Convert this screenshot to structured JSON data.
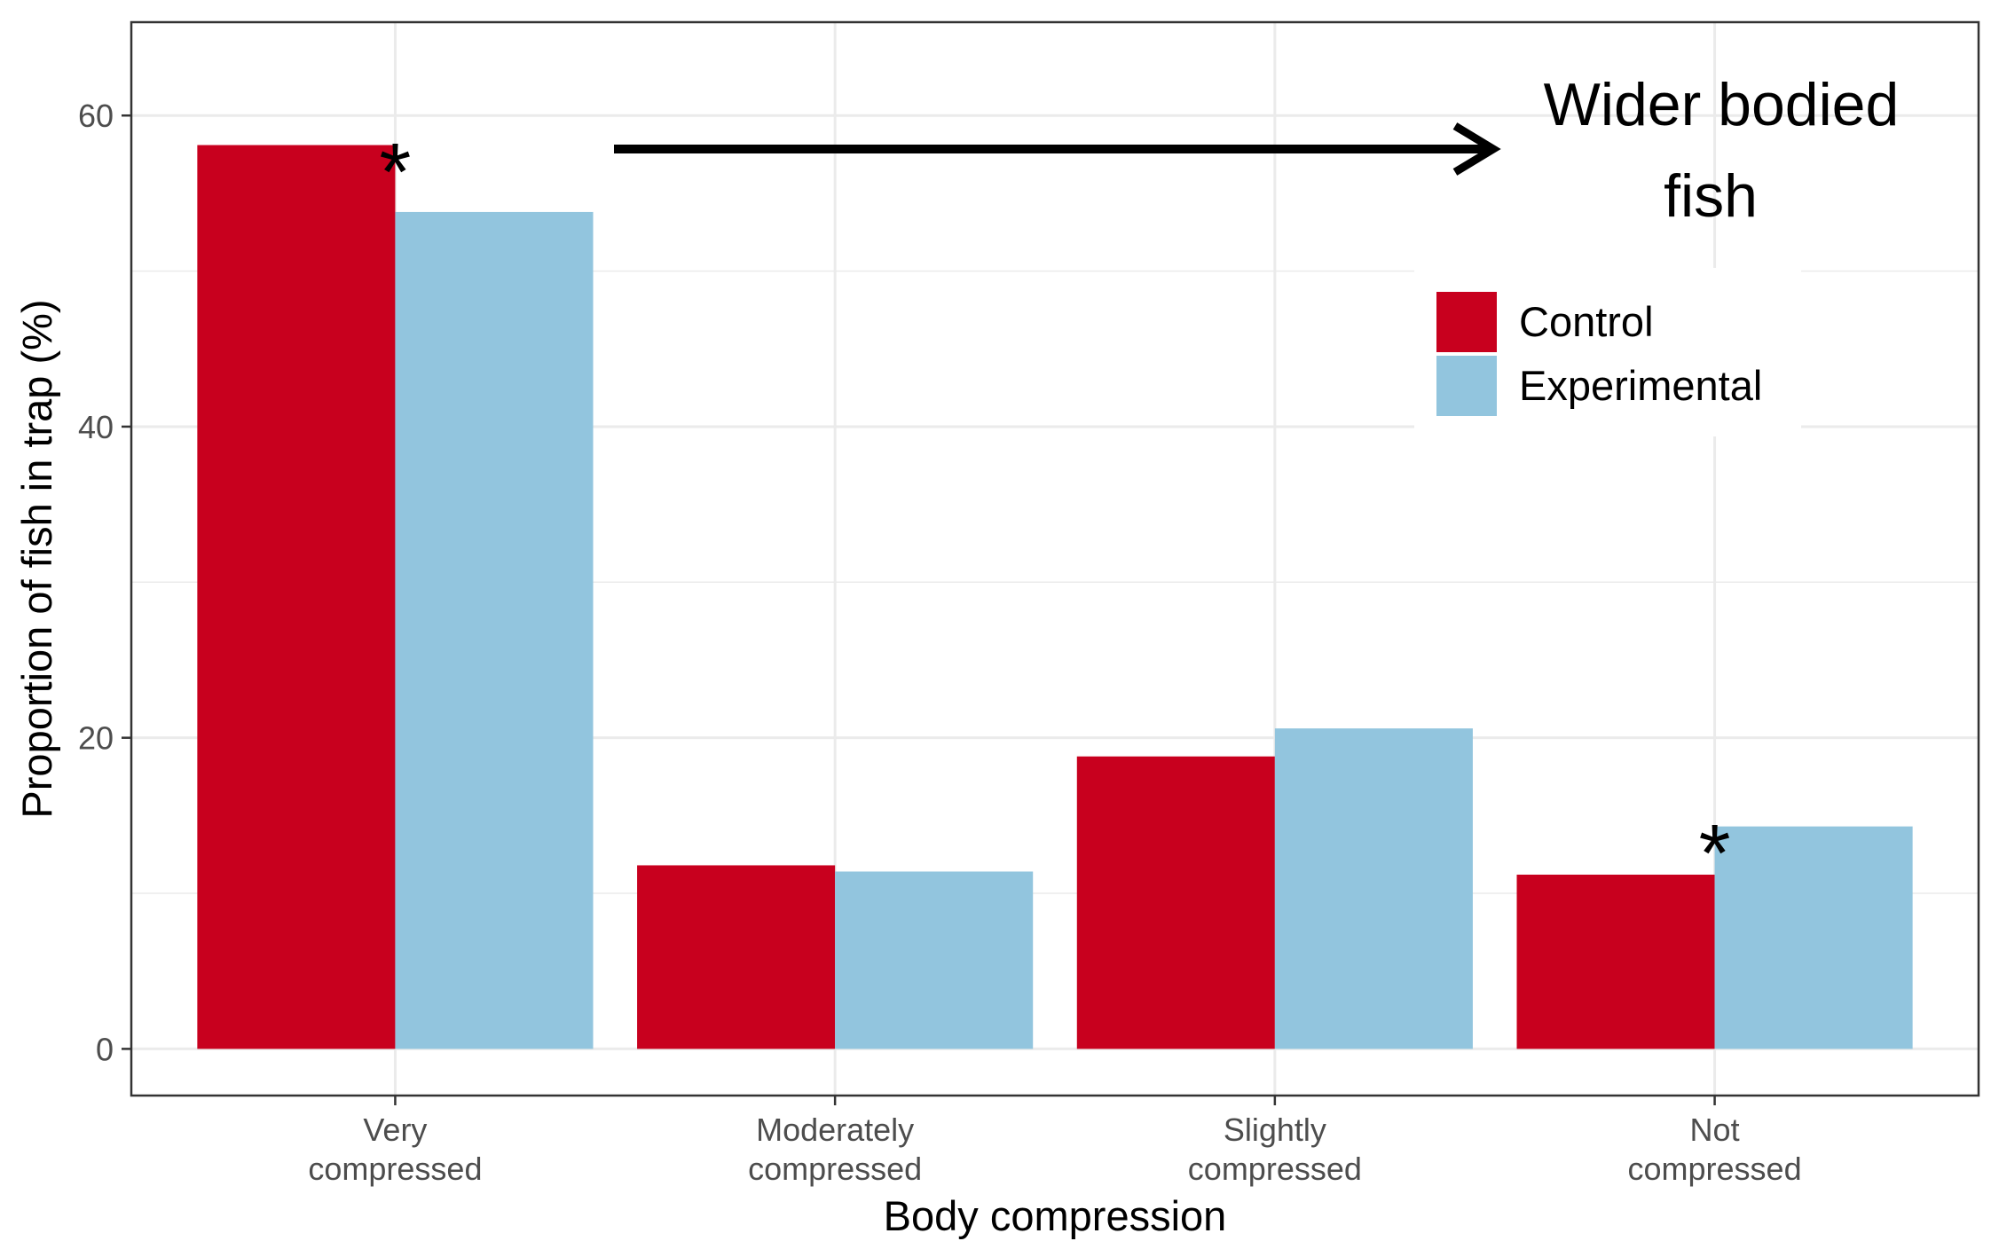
{
  "chart_data": {
    "type": "bar",
    "categories": [
      [
        "Very",
        "compressed"
      ],
      [
        "Moderately",
        "compressed"
      ],
      [
        "Slightly",
        "compressed"
      ],
      [
        "Not",
        "compressed"
      ]
    ],
    "series": [
      {
        "name": "Control",
        "color": "#C8001E",
        "values": [
          58.1,
          11.8,
          18.8,
          11.2
        ]
      },
      {
        "name": "Experimental",
        "color": "#92C5DE",
        "values": [
          53.8,
          11.4,
          20.6,
          14.3
        ]
      }
    ],
    "xlabel": "Body compression",
    "ylabel": "Proportion of fish in trap (%)",
    "ylim": [
      -3,
      66
    ],
    "yticks": [
      0,
      20,
      40,
      60
    ],
    "yticks_labels": [
      "0",
      "20",
      "40",
      "60"
    ],
    "grid": true,
    "legend_position": "top-right",
    "annotations": {
      "significance_marker": "*",
      "significant_categories": [
        0,
        3
      ],
      "arrow_label": [
        "Wider bodied",
        "fish"
      ],
      "arrow_direction": "right"
    }
  }
}
